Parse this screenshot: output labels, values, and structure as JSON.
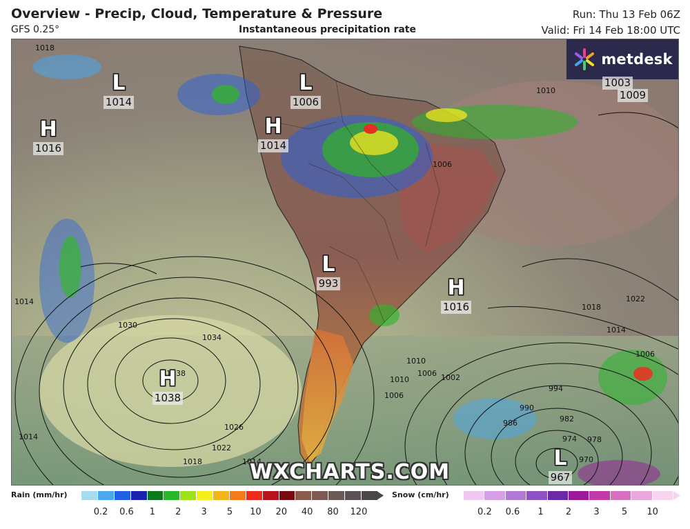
{
  "header": {
    "title": "Overview - Precip, Cloud, Temperature & Pressure",
    "model": "GFS 0.25°",
    "subtitle": "Instantaneous precipitation rate",
    "run": "Run: Thu 13 Feb 06Z",
    "valid": "Valid: Fri 14 Feb 18:00 UTC"
  },
  "logo": {
    "text": "metdesk",
    "color": "#2b2a4c"
  },
  "watermark": "WXCHARTS.COM",
  "pressure_systems": [
    {
      "type": "L",
      "value": "1014"
    },
    {
      "type": "L",
      "value": "1006"
    },
    {
      "type": "H",
      "value": "1016"
    },
    {
      "type": "H",
      "value": "1014"
    },
    {
      "type": "L",
      "value": "993"
    },
    {
      "type": "H",
      "value": "1016"
    },
    {
      "type": "H",
      "value": "1038"
    },
    {
      "type": "L",
      "value": "967"
    },
    {
      "type": "L",
      "value": "1003"
    },
    {
      "type": "L",
      "value": "1009"
    }
  ],
  "isobar_labels": [
    "1018",
    "1014",
    "1030",
    "1034",
    "1038",
    "1026",
    "1022",
    "1018",
    "1014",
    "1014",
    "1010",
    "1006",
    "1010",
    "1006",
    "1002",
    "994",
    "990",
    "986",
    "982",
    "978",
    "974",
    "970",
    "1018",
    "1014",
    "1022",
    "1006",
    "1010",
    "1006"
  ],
  "rain_legend": {
    "title": "Rain (mm/hr)",
    "colors": [
      "#a6dcee",
      "#4aa8f0",
      "#2060e6",
      "#1a22b0",
      "#0a7a1a",
      "#2ab82a",
      "#9ee21a",
      "#f4f01a",
      "#f4b51a",
      "#f47a1a",
      "#ee2a1a",
      "#b8141a",
      "#7a0a12",
      "#8a5a4a",
      "#7a5a52",
      "#6a5a5a",
      "#5a5256",
      "#4a464a"
    ],
    "ticks": [
      "0.2",
      "0.6",
      "1",
      "2",
      "3",
      "5",
      "10",
      "20",
      "40",
      "80",
      "120"
    ]
  },
  "snow_legend": {
    "title": "Snow (cm/hr)",
    "colors": [
      "#f0c8f0",
      "#d6a0e6",
      "#b27ad6",
      "#8e52c2",
      "#6a2aa8",
      "#9a1a9a",
      "#c23aa8",
      "#d870c0",
      "#eaa8dc",
      "#f6d6ee"
    ],
    "ticks": [
      "0.2",
      "0.6",
      "1",
      "2",
      "3",
      "5",
      "10"
    ]
  }
}
